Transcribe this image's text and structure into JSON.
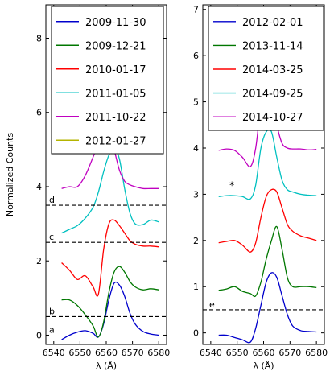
{
  "chart_data": [
    {
      "type": "line",
      "xlabel": "λ (Å)",
      "ylabel": "Normalized Counts",
      "xlim": [
        6537,
        6583
      ],
      "ylim": [
        -0.25,
        8.9
      ],
      "xticks": [
        6540,
        6550,
        6560,
        6570,
        6580
      ],
      "yticks": [
        0,
        2,
        4,
        6,
        8
      ],
      "legend_position": "top-right",
      "x": [
        6543,
        6546,
        6549,
        6552,
        6555,
        6557,
        6559,
        6561,
        6563,
        6565,
        6567,
        6569,
        6571,
        6574,
        6577,
        6580
      ],
      "series": [
        {
          "name": "2009-11-30",
          "color": "#0000cc",
          "y": [
            -0.12,
            0.0,
            0.08,
            0.12,
            0.05,
            -0.05,
            0.3,
            0.95,
            1.4,
            1.35,
            1.05,
            0.6,
            0.3,
            0.1,
            0.03,
            0.0
          ]
        },
        {
          "name": "2009-12-21",
          "color": "#007700",
          "y": [
            0.95,
            0.95,
            0.8,
            0.55,
            0.25,
            -0.05,
            0.35,
            1.15,
            1.7,
            1.85,
            1.7,
            1.45,
            1.3,
            1.22,
            1.25,
            1.22
          ]
        },
        {
          "name": "2010-01-17",
          "color": "#ff0000",
          "y": [
            1.95,
            1.75,
            1.5,
            1.6,
            1.3,
            1.1,
            2.3,
            3.0,
            3.1,
            2.95,
            2.75,
            2.55,
            2.45,
            2.4,
            2.4,
            2.38
          ]
        },
        {
          "name": "2011-01-05",
          "color": "#00c0c0",
          "y": [
            2.75,
            2.85,
            2.95,
            3.15,
            3.45,
            3.85,
            4.4,
            4.85,
            5.05,
            4.75,
            3.95,
            3.3,
            3.0,
            2.98,
            3.1,
            3.05
          ]
        },
        {
          "name": "2011-10-22",
          "color": "#c000c0",
          "y": [
            3.95,
            4.0,
            4.0,
            4.3,
            4.8,
            5.15,
            5.5,
            5.45,
            5.0,
            4.45,
            4.15,
            4.05,
            4.0,
            3.95,
            3.95,
            3.95
          ]
        },
        {
          "name": "2012-01-27",
          "color": "#b4b400",
          "y": [
            4.95,
            4.95,
            5.0,
            5.05,
            5.1,
            5.25,
            5.7,
            6.3,
            6.6,
            6.0,
            5.3,
            5.1,
            5.05,
            5.05,
            5.05,
            5.05
          ]
        }
      ],
      "reference_lines": [
        {
          "label": "d",
          "y": 3.5
        },
        {
          "label": "c",
          "y": 2.5
        },
        {
          "label": "b",
          "y": 0.5
        },
        {
          "label": "a",
          "y": 0.0
        }
      ]
    },
    {
      "type": "line",
      "xlabel": "λ (Å)",
      "ylabel": "",
      "xlim": [
        6537,
        6583
      ],
      "ylim": [
        -0.25,
        7.1
      ],
      "xticks": [
        6540,
        6550,
        6560,
        6570,
        6580
      ],
      "yticks": [
        0,
        1,
        2,
        3,
        4,
        5,
        6,
        7
      ],
      "legend_position": "top-right",
      "x": [
        6543,
        6546,
        6549,
        6552,
        6555,
        6557,
        6559,
        6561,
        6563,
        6565,
        6567,
        6569,
        6571,
        6574,
        6577,
        6580
      ],
      "series": [
        {
          "name": "2012-02-01",
          "color": "#0000cc",
          "y": [
            -0.05,
            -0.05,
            -0.1,
            -0.15,
            -0.2,
            0.1,
            0.6,
            1.1,
            1.3,
            1.2,
            0.8,
            0.4,
            0.15,
            0.05,
            0.03,
            0.02
          ]
        },
        {
          "name": "2013-11-14",
          "color": "#007700",
          "y": [
            0.92,
            0.95,
            1.0,
            0.9,
            0.85,
            0.8,
            1.1,
            1.6,
            2.0,
            2.3,
            1.8,
            1.2,
            1.0,
            1.0,
            1.0,
            0.98
          ]
        },
        {
          "name": "2014-03-25",
          "color": "#ff0000",
          "y": [
            1.95,
            1.98,
            2.0,
            1.9,
            1.75,
            1.95,
            2.5,
            2.95,
            3.1,
            3.05,
            2.7,
            2.35,
            2.2,
            2.1,
            2.05,
            2.0
          ]
        },
        {
          "name": "2014-09-25",
          "color": "#00c0c0",
          "y": [
            2.95,
            2.97,
            2.97,
            2.95,
            2.9,
            3.2,
            4.0,
            4.35,
            4.35,
            3.8,
            3.3,
            3.1,
            3.05,
            3.0,
            2.98,
            2.97
          ]
        },
        {
          "name": "2014-10-27",
          "color": "#c000c0",
          "y": [
            3.95,
            3.98,
            3.95,
            3.8,
            3.6,
            4.0,
            4.9,
            5.2,
            5.1,
            4.5,
            4.1,
            4.0,
            3.98,
            3.98,
            3.96,
            3.97
          ]
        }
      ],
      "reference_lines": [
        {
          "label": "e",
          "y": 0.5
        }
      ],
      "annotations": [
        {
          "text": "*",
          "x": 6548,
          "y": 3.12
        }
      ]
    }
  ]
}
